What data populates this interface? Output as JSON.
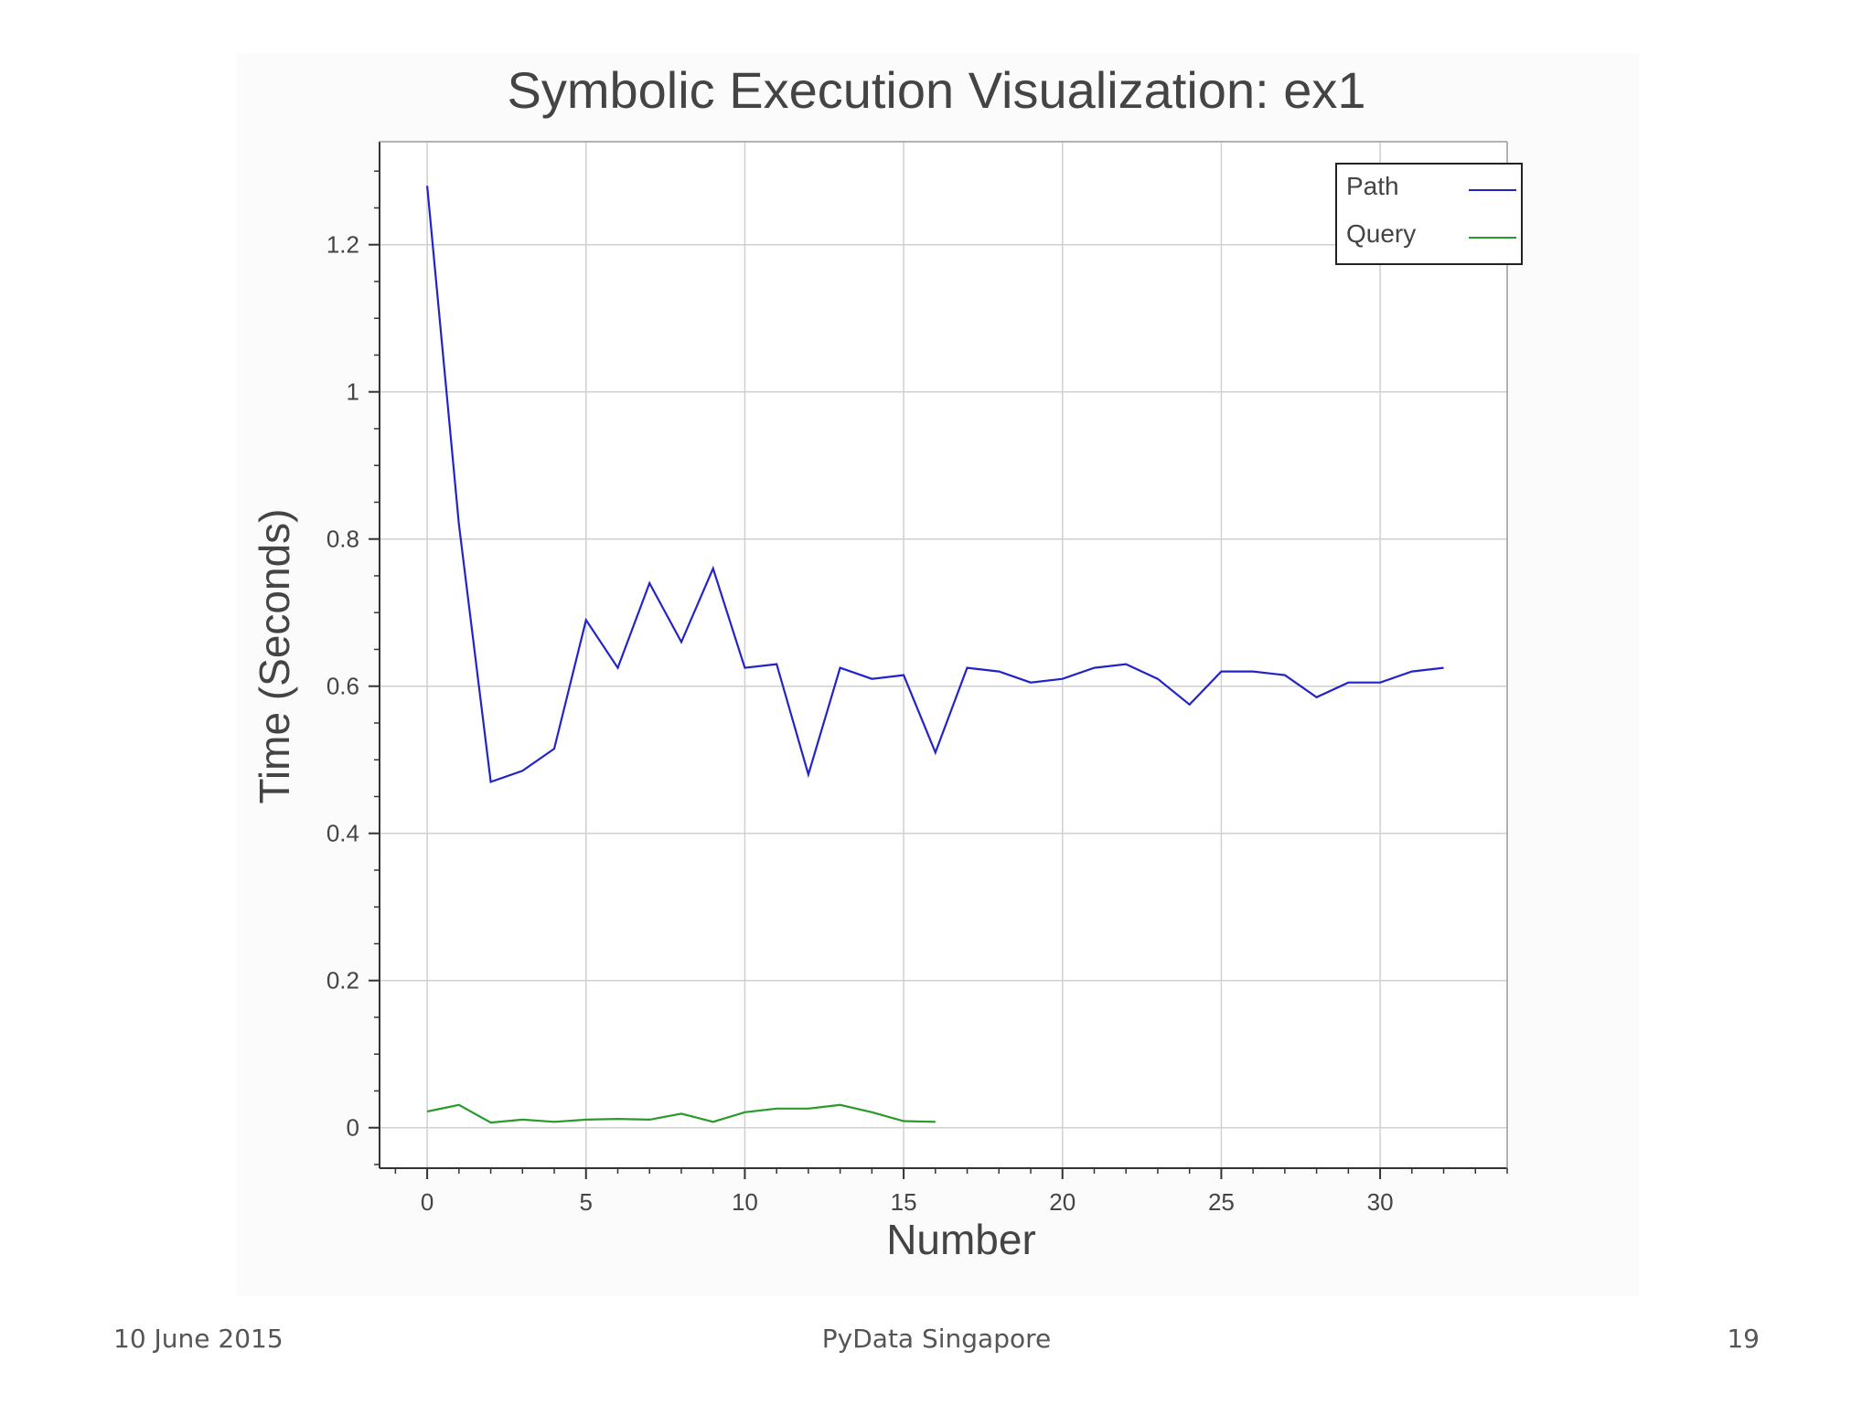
{
  "footer": {
    "date": "10 June 2015",
    "event": "PyData Singapore",
    "page": "19"
  },
  "chart_data": {
    "type": "line",
    "title": "Symbolic Execution Visualization: ex1",
    "xlabel": "Number",
    "ylabel": "Time (Seconds)",
    "xlim": [
      -1.5,
      34
    ],
    "ylim": [
      -0.055,
      1.34
    ],
    "xticks": [
      0,
      5,
      10,
      15,
      20,
      25,
      30
    ],
    "yticks": [
      0,
      0.2,
      0.4,
      0.6,
      0.8,
      1,
      1.2
    ],
    "ytick_labels": [
      "0",
      "0.2",
      "0.4",
      "0.6",
      "0.8",
      "1",
      "1.2"
    ],
    "grid": true,
    "legend_position": "top-right",
    "series": [
      {
        "name": "Path",
        "color": "#2323c8",
        "x": [
          0,
          1,
          2,
          3,
          4,
          5,
          6,
          7,
          8,
          9,
          10,
          11,
          12,
          13,
          14,
          15,
          16,
          17,
          18,
          19,
          20,
          21,
          22,
          23,
          24,
          25,
          26,
          27,
          28,
          29,
          30,
          31,
          32
        ],
        "values": [
          1.28,
          0.82,
          0.47,
          0.485,
          0.515,
          0.69,
          0.625,
          0.74,
          0.66,
          0.76,
          0.625,
          0.63,
          0.48,
          0.625,
          0.61,
          0.615,
          0.51,
          0.625,
          0.62,
          0.605,
          0.61,
          0.625,
          0.63,
          0.61,
          0.575,
          0.62,
          0.62,
          0.615,
          0.585,
          0.605,
          0.605,
          0.62,
          0.625
        ]
      },
      {
        "name": "Query",
        "color": "#2a9a2a",
        "x": [
          0,
          1,
          2,
          3,
          4,
          5,
          6,
          7,
          8,
          9,
          10,
          11,
          12,
          13,
          14,
          15,
          16
        ],
        "values": [
          0.022,
          0.031,
          0.007,
          0.011,
          0.008,
          0.011,
          0.012,
          0.011,
          0.019,
          0.008,
          0.021,
          0.026,
          0.026,
          0.031,
          0.021,
          0.009,
          0.008
        ]
      }
    ]
  }
}
